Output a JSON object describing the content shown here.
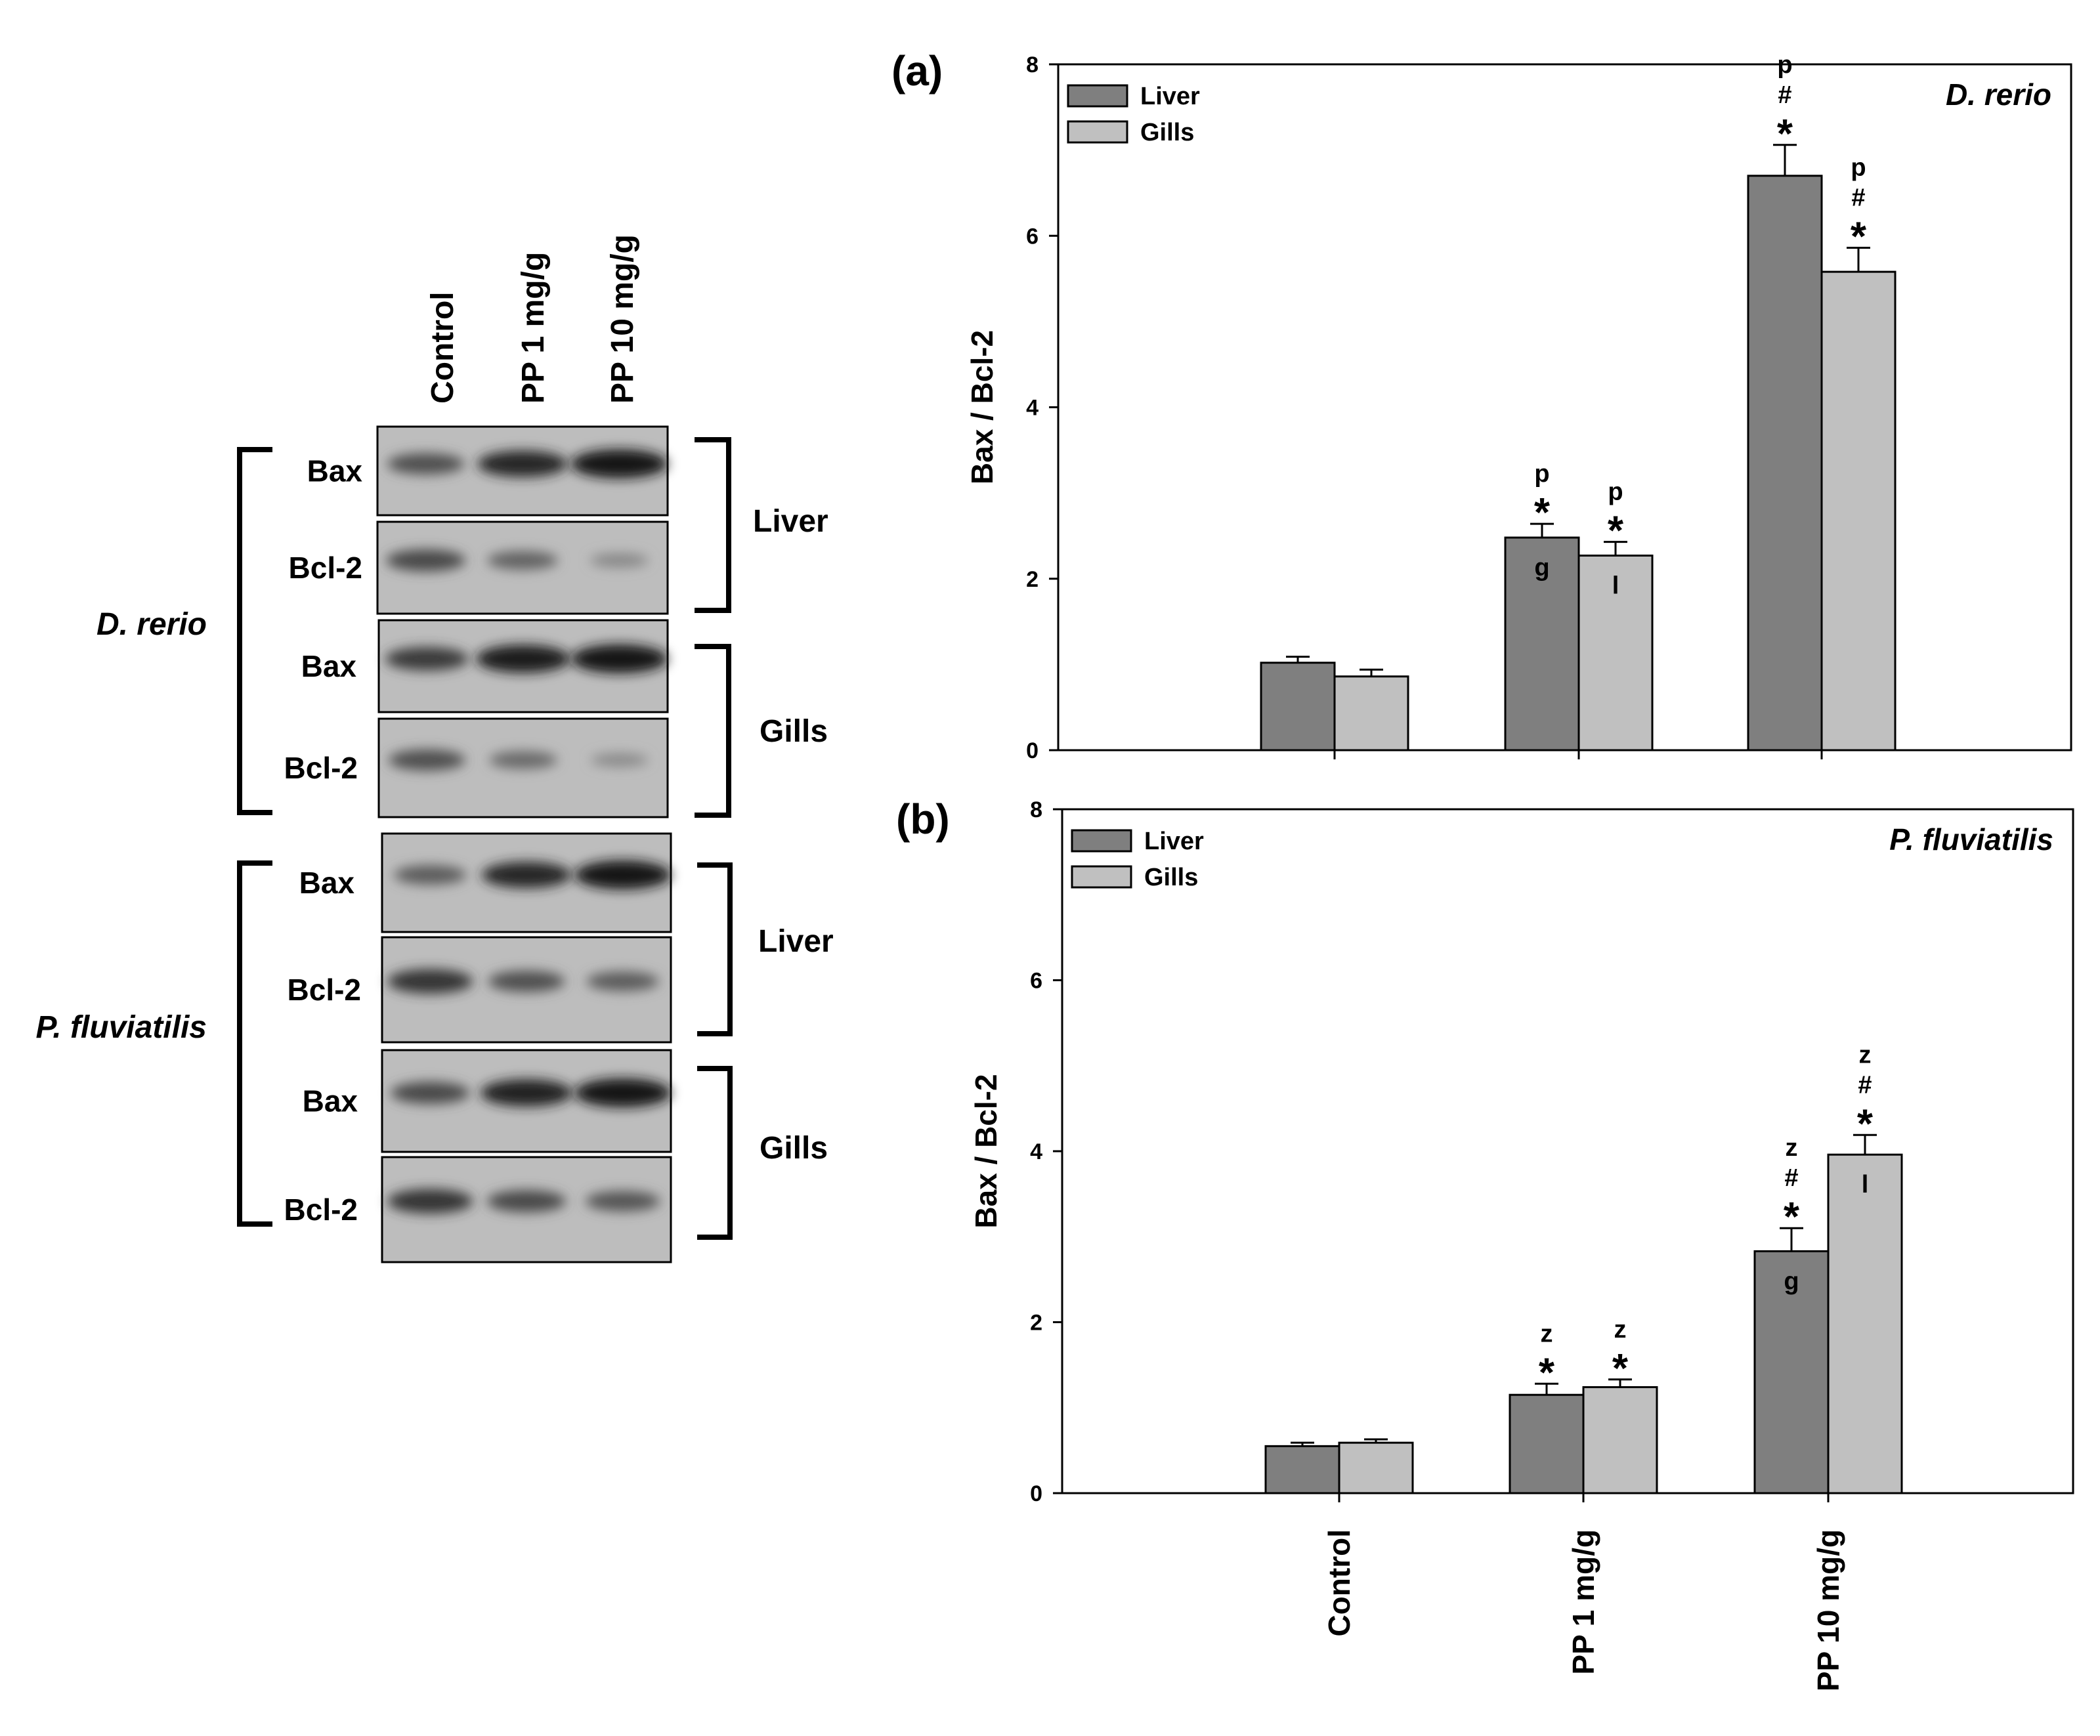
{
  "blot": {
    "lane_labels": [
      "Control",
      "PP 1 mg/g",
      "PP 10 mg/g"
    ],
    "species": [
      {
        "name": "D. rerio",
        "tissues": [
          {
            "name": "Liver",
            "rows": [
              {
                "protein": "Bax",
                "intensity": [
                  0.55,
                  0.85,
                  1.0
                ]
              },
              {
                "protein": "Bcl-2",
                "intensity": [
                  0.6,
                  0.4,
                  0.12
                ]
              }
            ]
          },
          {
            "name": "Gills",
            "rows": [
              {
                "protein": "Bax",
                "intensity": [
                  0.7,
                  0.95,
                  1.0
                ]
              },
              {
                "protein": "Bcl-2",
                "intensity": [
                  0.55,
                  0.35,
                  0.1
                ]
              }
            ]
          }
        ]
      },
      {
        "name": "P. fluviatilis",
        "tissues": [
          {
            "name": "Liver",
            "rows": [
              {
                "protein": "Bax",
                "intensity": [
                  0.45,
                  0.85,
                  1.0
                ]
              },
              {
                "protein": "Bcl-2",
                "intensity": [
                  0.75,
                  0.55,
                  0.45
                ]
              }
            ]
          },
          {
            "name": "Gills",
            "rows": [
              {
                "protein": "Bax",
                "intensity": [
                  0.6,
                  0.9,
                  1.0
                ]
              },
              {
                "protein": "Bcl-2",
                "intensity": [
                  0.75,
                  0.6,
                  0.5
                ]
              }
            ]
          }
        ]
      }
    ]
  },
  "chart_data": [
    {
      "type": "bar",
      "panel_label": "(a)",
      "title": "D. rerio",
      "categories": [
        "Control",
        "PP 1 mg/g",
        "PP 10 mg/g"
      ],
      "ylabel": "Bax / Bcl-2",
      "ylim": [
        0,
        8
      ],
      "yticks": [
        0,
        2,
        4,
        6,
        8
      ],
      "legend_position": "top-left",
      "series": [
        {
          "name": "Liver",
          "color": "#7f7f7f",
          "values": [
            1.02,
            2.48,
            6.7
          ],
          "errors": [
            0.07,
            0.16,
            0.36
          ],
          "annotations_above": [
            [],
            [
              "*",
              "p"
            ],
            [
              "*",
              "#",
              "p"
            ]
          ],
          "annotations_inside": [
            "",
            "g",
            ""
          ]
        },
        {
          "name": "Gills",
          "color": "#c0c0c0",
          "values": [
            0.86,
            2.27,
            5.58
          ],
          "errors": [
            0.08,
            0.16,
            0.28
          ],
          "annotations_above": [
            [],
            [
              "*",
              "p"
            ],
            [
              "*",
              "#",
              "p"
            ]
          ],
          "annotations_inside": [
            "",
            "l",
            ""
          ]
        }
      ]
    },
    {
      "type": "bar",
      "panel_label": "(b)",
      "title": "P. fluviatilis",
      "categories": [
        "Control",
        "PP 1 mg/g",
        "PP 10 mg/g"
      ],
      "xtick_labels": [
        "Control",
        "PP 1 mg/g",
        "PP 10 mg/g"
      ],
      "ylabel": "Bax / Bcl-2",
      "ylim": [
        0,
        8
      ],
      "yticks": [
        0,
        2,
        4,
        6,
        8
      ],
      "legend_position": "top-left",
      "series": [
        {
          "name": "Liver",
          "color": "#7f7f7f",
          "values": [
            0.55,
            1.15,
            2.83
          ],
          "errors": [
            0.04,
            0.13,
            0.27
          ],
          "annotations_above": [
            [],
            [
              "*",
              "z"
            ],
            [
              "*",
              "#",
              "z"
            ]
          ],
          "annotations_inside": [
            "",
            "",
            "g"
          ]
        },
        {
          "name": "Gills",
          "color": "#c0c0c0",
          "values": [
            0.59,
            1.24,
            3.96
          ],
          "errors": [
            0.04,
            0.09,
            0.23
          ],
          "annotations_above": [
            [],
            [
              "*",
              "z"
            ],
            [
              "*",
              "#",
              "z"
            ]
          ],
          "annotations_inside": [
            "",
            "",
            "l"
          ]
        }
      ]
    }
  ]
}
